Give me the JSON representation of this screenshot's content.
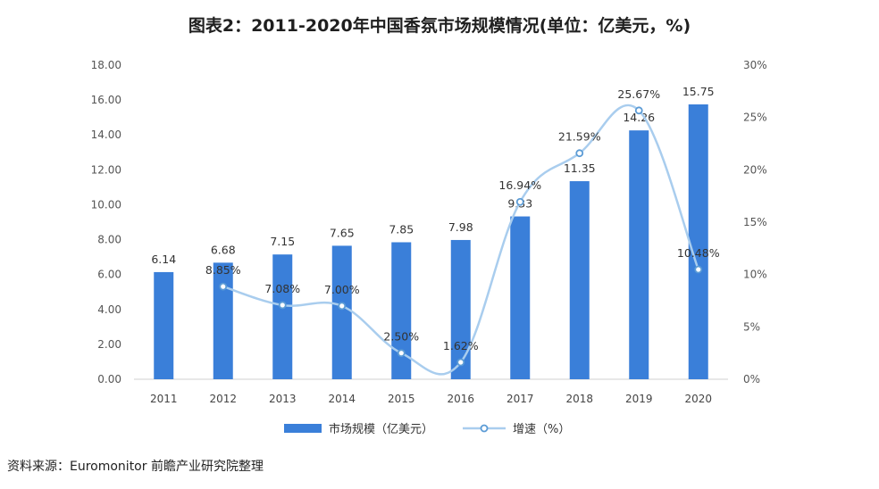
{
  "title": "图表2：2011-2020年中国香氛市场规模情况(单位：亿美元，%)",
  "source": "资料来源：Euromonitor 前瞻产业研究院整理",
  "chart_data": {
    "type": "bar+line",
    "categories": [
      "2011",
      "2012",
      "2013",
      "2014",
      "2015",
      "2016",
      "2017",
      "2018",
      "2019",
      "2020"
    ],
    "series": [
      {
        "name": "市场规模（亿美元）",
        "type": "bar",
        "axis": "left",
        "values": [
          6.14,
          6.68,
          7.15,
          7.65,
          7.85,
          7.98,
          9.33,
          11.35,
          14.26,
          15.75
        ],
        "labels": [
          "6.14",
          "6.68",
          "7.15",
          "7.65",
          "7.85",
          "7.98",
          "9.33",
          "11.35",
          "14.26",
          "15.75"
        ]
      },
      {
        "name": "增速（%）",
        "type": "line",
        "axis": "right",
        "values": [
          null,
          8.85,
          7.08,
          7.0,
          2.5,
          1.62,
          16.94,
          21.59,
          25.67,
          10.48
        ],
        "labels": [
          "",
          "8.85%",
          "7.08%",
          "7.00%",
          "2.50%",
          "1.62%",
          "16.94%",
          "21.59%",
          "25.67%",
          "10.48%"
        ]
      }
    ],
    "y_left": {
      "range": [
        0,
        18
      ],
      "ticks": [
        "0.00",
        "2.00",
        "4.00",
        "6.00",
        "8.00",
        "10.00",
        "12.00",
        "14.00",
        "16.00",
        "18.00"
      ]
    },
    "y_right": {
      "range": [
        0,
        30
      ],
      "ticks": [
        "0%",
        "5%",
        "10%",
        "15%",
        "20%",
        "25%",
        "30%"
      ]
    },
    "legend_position": "bottom",
    "colors": {
      "bar": "#3a7fd9",
      "line": "#a9cdee",
      "marker": "#5b9bd5"
    }
  }
}
